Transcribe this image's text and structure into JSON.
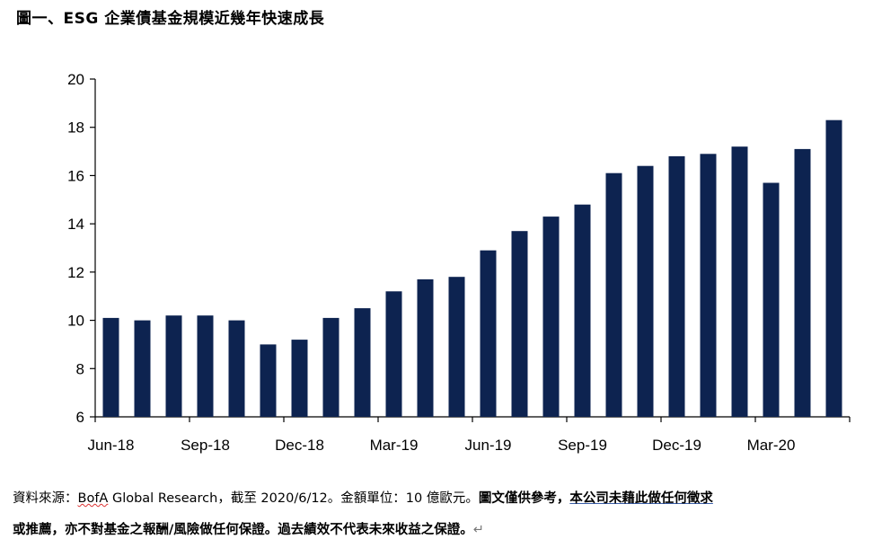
{
  "title": "圖一、ESG 企業債基金規模近幾年快速成長",
  "chart_data": {
    "type": "bar",
    "title": "圖一、ESG 企業債基金規模近幾年快速成長",
    "xlabel": "",
    "ylabel": "",
    "ylim": [
      6,
      20
    ],
    "yticks": [
      6,
      8,
      10,
      12,
      14,
      16,
      18,
      20
    ],
    "xtick_labels": [
      "Jun-18",
      "Sep-18",
      "Dec-18",
      "Mar-19",
      "Jun-19",
      "Sep-19",
      "Dec-19",
      "Mar-20"
    ],
    "categories": [
      "Jun-18",
      "Jul-18",
      "Aug-18",
      "Sep-18",
      "Oct-18",
      "Nov-18",
      "Dec-18",
      "Jan-19",
      "Feb-19",
      "Mar-19",
      "Apr-19",
      "May-19",
      "Jun-19",
      "Jul-19",
      "Aug-19",
      "Sep-19",
      "Oct-19",
      "Nov-19",
      "Dec-19",
      "Jan-20",
      "Feb-20",
      "Mar-20",
      "Apr-20",
      "May-20"
    ],
    "values": [
      10.1,
      10.0,
      10.2,
      10.2,
      10.0,
      9.0,
      9.2,
      10.1,
      10.5,
      11.2,
      11.7,
      11.8,
      12.9,
      13.7,
      14.3,
      14.8,
      16.1,
      16.4,
      16.8,
      16.9,
      17.2,
      15.7,
      17.1,
      18.3
    ],
    "bar_color": "#0d2350",
    "grid": false,
    "legend": "none"
  },
  "footnote": {
    "line1_prefix": "資料來源：",
    "source": "BofA",
    "line1_rest": " Global Research，截至  2020/6/12。金額單位：10 億歐元。",
    "disclaimer_a": "圖文僅供參考，",
    "disclaimer_b": "本公司未藉此做任何徵求",
    "line2": "或推薦，亦不對基金之報酬/風險做任何保證。過去績效不代表未來收益之保證。",
    "para_mark": "↵"
  }
}
